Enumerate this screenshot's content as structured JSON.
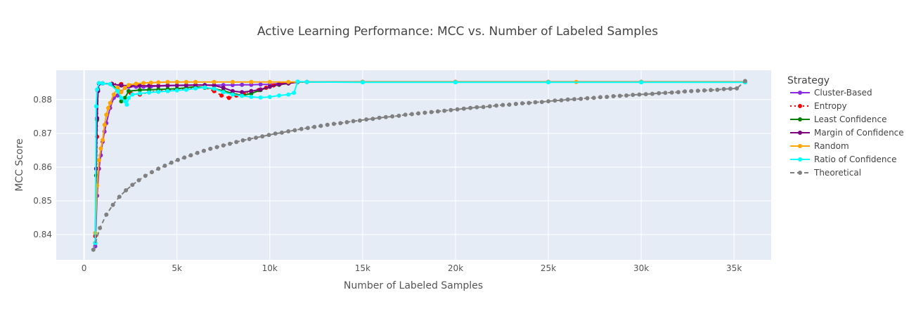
{
  "chart_data": {
    "type": "line",
    "title": "Active Learning Performance: MCC vs. Number of Labeled Samples",
    "xlabel": "Number of Labeled Samples",
    "ylabel": "MCC Score",
    "xlim": [
      -1500,
      37000
    ],
    "ylim": [
      0.8325,
      0.8887
    ],
    "x_ticks": [
      0,
      5000,
      10000,
      15000,
      20000,
      25000,
      30000,
      35000
    ],
    "x_tick_labels": [
      "0",
      "5k",
      "10k",
      "15k",
      "20k",
      "25k",
      "30k",
      "35k"
    ],
    "y_ticks": [
      0.84,
      0.85,
      0.86,
      0.87,
      0.88
    ],
    "y_tick_labels": [
      "0.84",
      "0.85",
      "0.86",
      "0.87",
      "0.88"
    ],
    "grid": true,
    "plot_bgcolor": "#e5ecf6",
    "legend": {
      "title": "Strategy",
      "placement": "right"
    },
    "series": [
      {
        "name": "Cluster-Based",
        "color": "#8a2be2",
        "dash": "solid",
        "markers": true,
        "x": [
          600,
          700,
          800,
          900,
          1000,
          1100,
          1200,
          1400,
          1600,
          1800,
          2000,
          2200,
          2400,
          2800,
          3200,
          3600,
          4000,
          4500,
          5000,
          5500,
          6000,
          6500,
          7000,
          7500,
          8000,
          8500,
          9000,
          9500,
          10000,
          10500,
          11000,
          11500,
          12000,
          15000,
          20000,
          25000,
          30000,
          35600
        ],
        "y": [
          0.8365,
          0.8515,
          0.8595,
          0.8635,
          0.8675,
          0.8705,
          0.873,
          0.8775,
          0.8805,
          0.8812,
          0.8823,
          0.8835,
          0.8838,
          0.8838,
          0.8838,
          0.8839,
          0.884,
          0.8841,
          0.8842,
          0.8843,
          0.8843,
          0.8843,
          0.8843,
          0.8843,
          0.8843,
          0.8844,
          0.8844,
          0.8845,
          0.8845,
          0.8848,
          0.8848,
          0.8852,
          0.8852,
          0.8852,
          0.8852,
          0.8852,
          0.8852,
          0.8852
        ]
      },
      {
        "name": "Entropy",
        "color": "#ff0000",
        "dash": "dot",
        "markers": true,
        "x": [
          600,
          700,
          750,
          800,
          1000,
          1500,
          2000,
          2500,
          3000,
          3500,
          4000,
          4500,
          5000,
          5500,
          6000,
          6500,
          7000,
          7400,
          7800,
          8200,
          8600,
          9000,
          9400,
          9800,
          10200,
          10600,
          11000,
          11500,
          12000,
          15000,
          20000,
          25000,
          30000,
          35600
        ],
        "y": [
          0.8395,
          0.869,
          0.8825,
          0.8848,
          0.8848,
          0.8847,
          0.8846,
          0.882,
          0.8815,
          0.8822,
          0.8825,
          0.8828,
          0.883,
          0.8832,
          0.8835,
          0.8836,
          0.8825,
          0.8812,
          0.8805,
          0.8812,
          0.8818,
          0.8825,
          0.8828,
          0.8835,
          0.8842,
          0.8848,
          0.8849,
          0.8852,
          0.8852,
          0.8852,
          0.8852,
          0.8852,
          0.8852,
          0.8852
        ]
      },
      {
        "name": "Least Confidence",
        "color": "#008000",
        "dash": "solid",
        "markers": true,
        "x": [
          600,
          650,
          700,
          750,
          800,
          1000,
          1500,
          1800,
          2000,
          2200,
          2400,
          3000,
          3500,
          4000,
          4500,
          5000,
          5500,
          6000,
          6500,
          7000,
          7500,
          8000,
          8500,
          9000,
          9500,
          10000,
          10500,
          11000,
          11500,
          12000,
          15000,
          20000,
          25000,
          30000,
          35600
        ],
        "y": [
          0.8375,
          0.8575,
          0.874,
          0.883,
          0.8848,
          0.8848,
          0.8845,
          0.883,
          0.8795,
          0.8805,
          0.8825,
          0.8828,
          0.8829,
          0.883,
          0.8831,
          0.8832,
          0.8835,
          0.8838,
          0.8835,
          0.8832,
          0.8826,
          0.8818,
          0.8812,
          0.8818,
          0.8828,
          0.8838,
          0.8844,
          0.8848,
          0.8852,
          0.8852,
          0.8852,
          0.8852,
          0.8852,
          0.8852,
          0.8852
        ]
      },
      {
        "name": "Margin of Confidence",
        "color": "#800080",
        "dash": "solid",
        "markers": true,
        "x": [
          600,
          650,
          700,
          750,
          800,
          1000,
          1500,
          2000,
          2500,
          3000,
          3500,
          4000,
          4500,
          5000,
          5500,
          6000,
          6500,
          7000,
          7500,
          8000,
          8500,
          9000,
          9500,
          10000,
          10500,
          11000,
          11500,
          12000,
          15000,
          20000,
          25000,
          30000,
          35600
        ],
        "y": [
          0.8375,
          0.8595,
          0.8745,
          0.8825,
          0.8847,
          0.8848,
          0.8846,
          0.8842,
          0.8841,
          0.8841,
          0.8841,
          0.8841,
          0.8842,
          0.8842,
          0.8842,
          0.8843,
          0.8843,
          0.8842,
          0.8835,
          0.8825,
          0.8822,
          0.8825,
          0.883,
          0.8838,
          0.8845,
          0.8848,
          0.8852,
          0.8852,
          0.8852,
          0.8852,
          0.8852,
          0.8852,
          0.8852
        ]
      },
      {
        "name": "Random",
        "color": "#ffa500",
        "dash": "solid",
        "markers": true,
        "x": [
          600,
          700,
          800,
          900,
          1000,
          1100,
          1200,
          1300,
          1400,
          1600,
          1800,
          2000,
          2200,
          2400,
          2800,
          3200,
          3600,
          4000,
          4500,
          5000,
          5500,
          6000,
          7000,
          8000,
          9000,
          10000,
          11000,
          12000,
          15000,
          20000,
          25000,
          26500,
          30000,
          35600
        ],
        "y": [
          0.8405,
          0.8545,
          0.862,
          0.8655,
          0.868,
          0.8725,
          0.8755,
          0.8775,
          0.879,
          0.8815,
          0.8835,
          0.8822,
          0.8835,
          0.8843,
          0.8847,
          0.8849,
          0.885,
          0.8851,
          0.8852,
          0.8852,
          0.8852,
          0.8852,
          0.8852,
          0.8852,
          0.8852,
          0.8852,
          0.8852,
          0.8852,
          0.8852,
          0.8852,
          0.8852,
          0.8852,
          0.8852,
          0.8852
        ]
      },
      {
        "name": "Ratio of Confidence",
        "color": "#00ffff",
        "dash": "solid",
        "markers": true,
        "x": [
          600,
          650,
          700,
          800,
          1000,
          1400,
          1800,
          2000,
          2200,
          2300,
          2400,
          2600,
          3000,
          3500,
          4000,
          4500,
          5000,
          5500,
          6000,
          6500,
          7000,
          7500,
          8000,
          8500,
          9000,
          9500,
          10000,
          10500,
          11000,
          11300,
          11500,
          12000,
          15000,
          20000,
          25000,
          30000,
          35600
        ],
        "y": [
          0.8375,
          0.878,
          0.883,
          0.8849,
          0.8848,
          0.8846,
          0.8825,
          0.8805,
          0.8795,
          0.8785,
          0.8805,
          0.8815,
          0.8818,
          0.8821,
          0.8823,
          0.8825,
          0.8827,
          0.8829,
          0.8833,
          0.8836,
          0.8832,
          0.8822,
          0.8815,
          0.8811,
          0.8808,
          0.8806,
          0.8808,
          0.8812,
          0.8815,
          0.882,
          0.8853,
          0.8852,
          0.8851,
          0.8851,
          0.8851,
          0.8851,
          0.8851
        ]
      },
      {
        "name": "Theoretical",
        "color": "#808080",
        "dash": "dash",
        "markers": true,
        "x": [
          500,
          850,
          1200,
          1550,
          1900,
          2250,
          2600,
          2950,
          3300,
          3650,
          4000,
          4350,
          4700,
          5050,
          5400,
          5750,
          6100,
          6450,
          6800,
          7150,
          7500,
          7850,
          8200,
          8550,
          8900,
          9250,
          9600,
          9950,
          10300,
          10650,
          11000,
          11350,
          11700,
          12050,
          12400,
          12750,
          13100,
          13450,
          13800,
          14150,
          14500,
          14850,
          15200,
          15550,
          15900,
          16250,
          16600,
          16950,
          17300,
          17650,
          18000,
          18350,
          18700,
          19050,
          19400,
          19750,
          20100,
          20450,
          20800,
          21150,
          21500,
          21850,
          22200,
          22550,
          22900,
          23250,
          23600,
          23950,
          24300,
          24650,
          25000,
          25350,
          25700,
          26050,
          26400,
          26750,
          27100,
          27450,
          27800,
          28150,
          28500,
          28850,
          29200,
          29550,
          29900,
          30250,
          30600,
          30950,
          31300,
          31650,
          32000,
          32350,
          32700,
          33050,
          33400,
          33750,
          34100,
          34450,
          34800,
          35150,
          35600
        ],
        "y": [
          0.8355,
          0.8419,
          0.8459,
          0.8488,
          0.8512,
          0.8531,
          0.8547,
          0.8561,
          0.8574,
          0.8585,
          0.8595,
          0.8604,
          0.8613,
          0.8621,
          0.8628,
          0.8635,
          0.8642,
          0.8648,
          0.8654,
          0.8659,
          0.8664,
          0.8669,
          0.8674,
          0.8679,
          0.8683,
          0.8687,
          0.8691,
          0.8695,
          0.8699,
          0.8702,
          0.8706,
          0.8709,
          0.8713,
          0.8716,
          0.8719,
          0.8722,
          0.8725,
          0.8728,
          0.873,
          0.8733,
          0.8736,
          0.8738,
          0.8741,
          0.8743,
          0.8746,
          0.8748,
          0.875,
          0.8752,
          0.8755,
          0.8757,
          0.8759,
          0.8761,
          0.8763,
          0.8765,
          0.8767,
          0.8769,
          0.8771,
          0.8773,
          0.8775,
          0.8777,
          0.8778,
          0.878,
          0.8782,
          0.8784,
          0.8785,
          0.8787,
          0.8789,
          0.879,
          0.8792,
          0.8793,
          0.8795,
          0.8797,
          0.8798,
          0.88,
          0.8801,
          0.8802,
          0.8804,
          0.8805,
          0.8807,
          0.8808,
          0.881,
          0.8811,
          0.8812,
          0.8814,
          0.8815,
          0.8816,
          0.8817,
          0.8819,
          0.882,
          0.8821,
          0.8822,
          0.8824,
          0.8825,
          0.8826,
          0.8827,
          0.8828,
          0.8829,
          0.8831,
          0.8832,
          0.8833,
          0.8855
        ]
      }
    ]
  }
}
